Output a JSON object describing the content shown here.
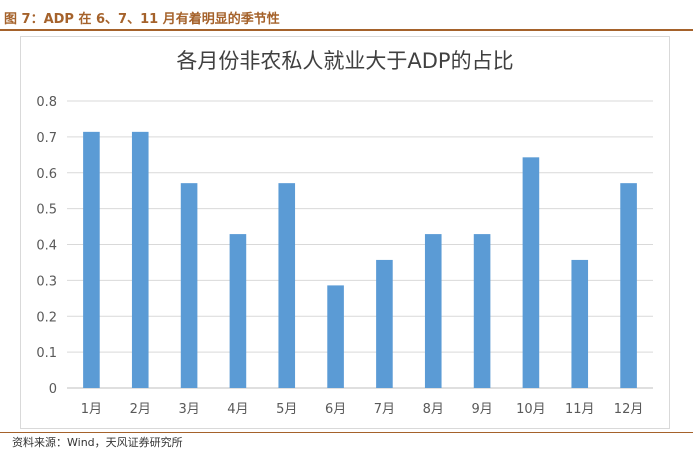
{
  "figure_caption": "图 7：ADP 在 6、7、11 月有着明显的季节性",
  "source_note": "资料来源：Wind，天风证券研究所",
  "colors": {
    "bar": "#5b9bd5",
    "caption": "#a5622b",
    "grid": "#d9d9d9",
    "axis_text": "#595959"
  },
  "chart_data": {
    "type": "bar",
    "title": "各月份非农私人就业大于ADP的占比",
    "xlabel": "",
    "ylabel": "",
    "categories": [
      "1月",
      "2月",
      "3月",
      "4月",
      "5月",
      "6月",
      "7月",
      "8月",
      "9月",
      "10月",
      "11月",
      "12月"
    ],
    "values": [
      0.714,
      0.714,
      0.571,
      0.429,
      0.571,
      0.286,
      0.357,
      0.429,
      0.429,
      0.643,
      0.357,
      0.571
    ],
    "ylim": [
      0,
      0.8
    ],
    "yticks": [
      "0",
      "0.1",
      "0.2",
      "0.3",
      "0.4",
      "0.5",
      "0.6",
      "0.7",
      "0.8"
    ],
    "grid": true,
    "legend": "none"
  }
}
